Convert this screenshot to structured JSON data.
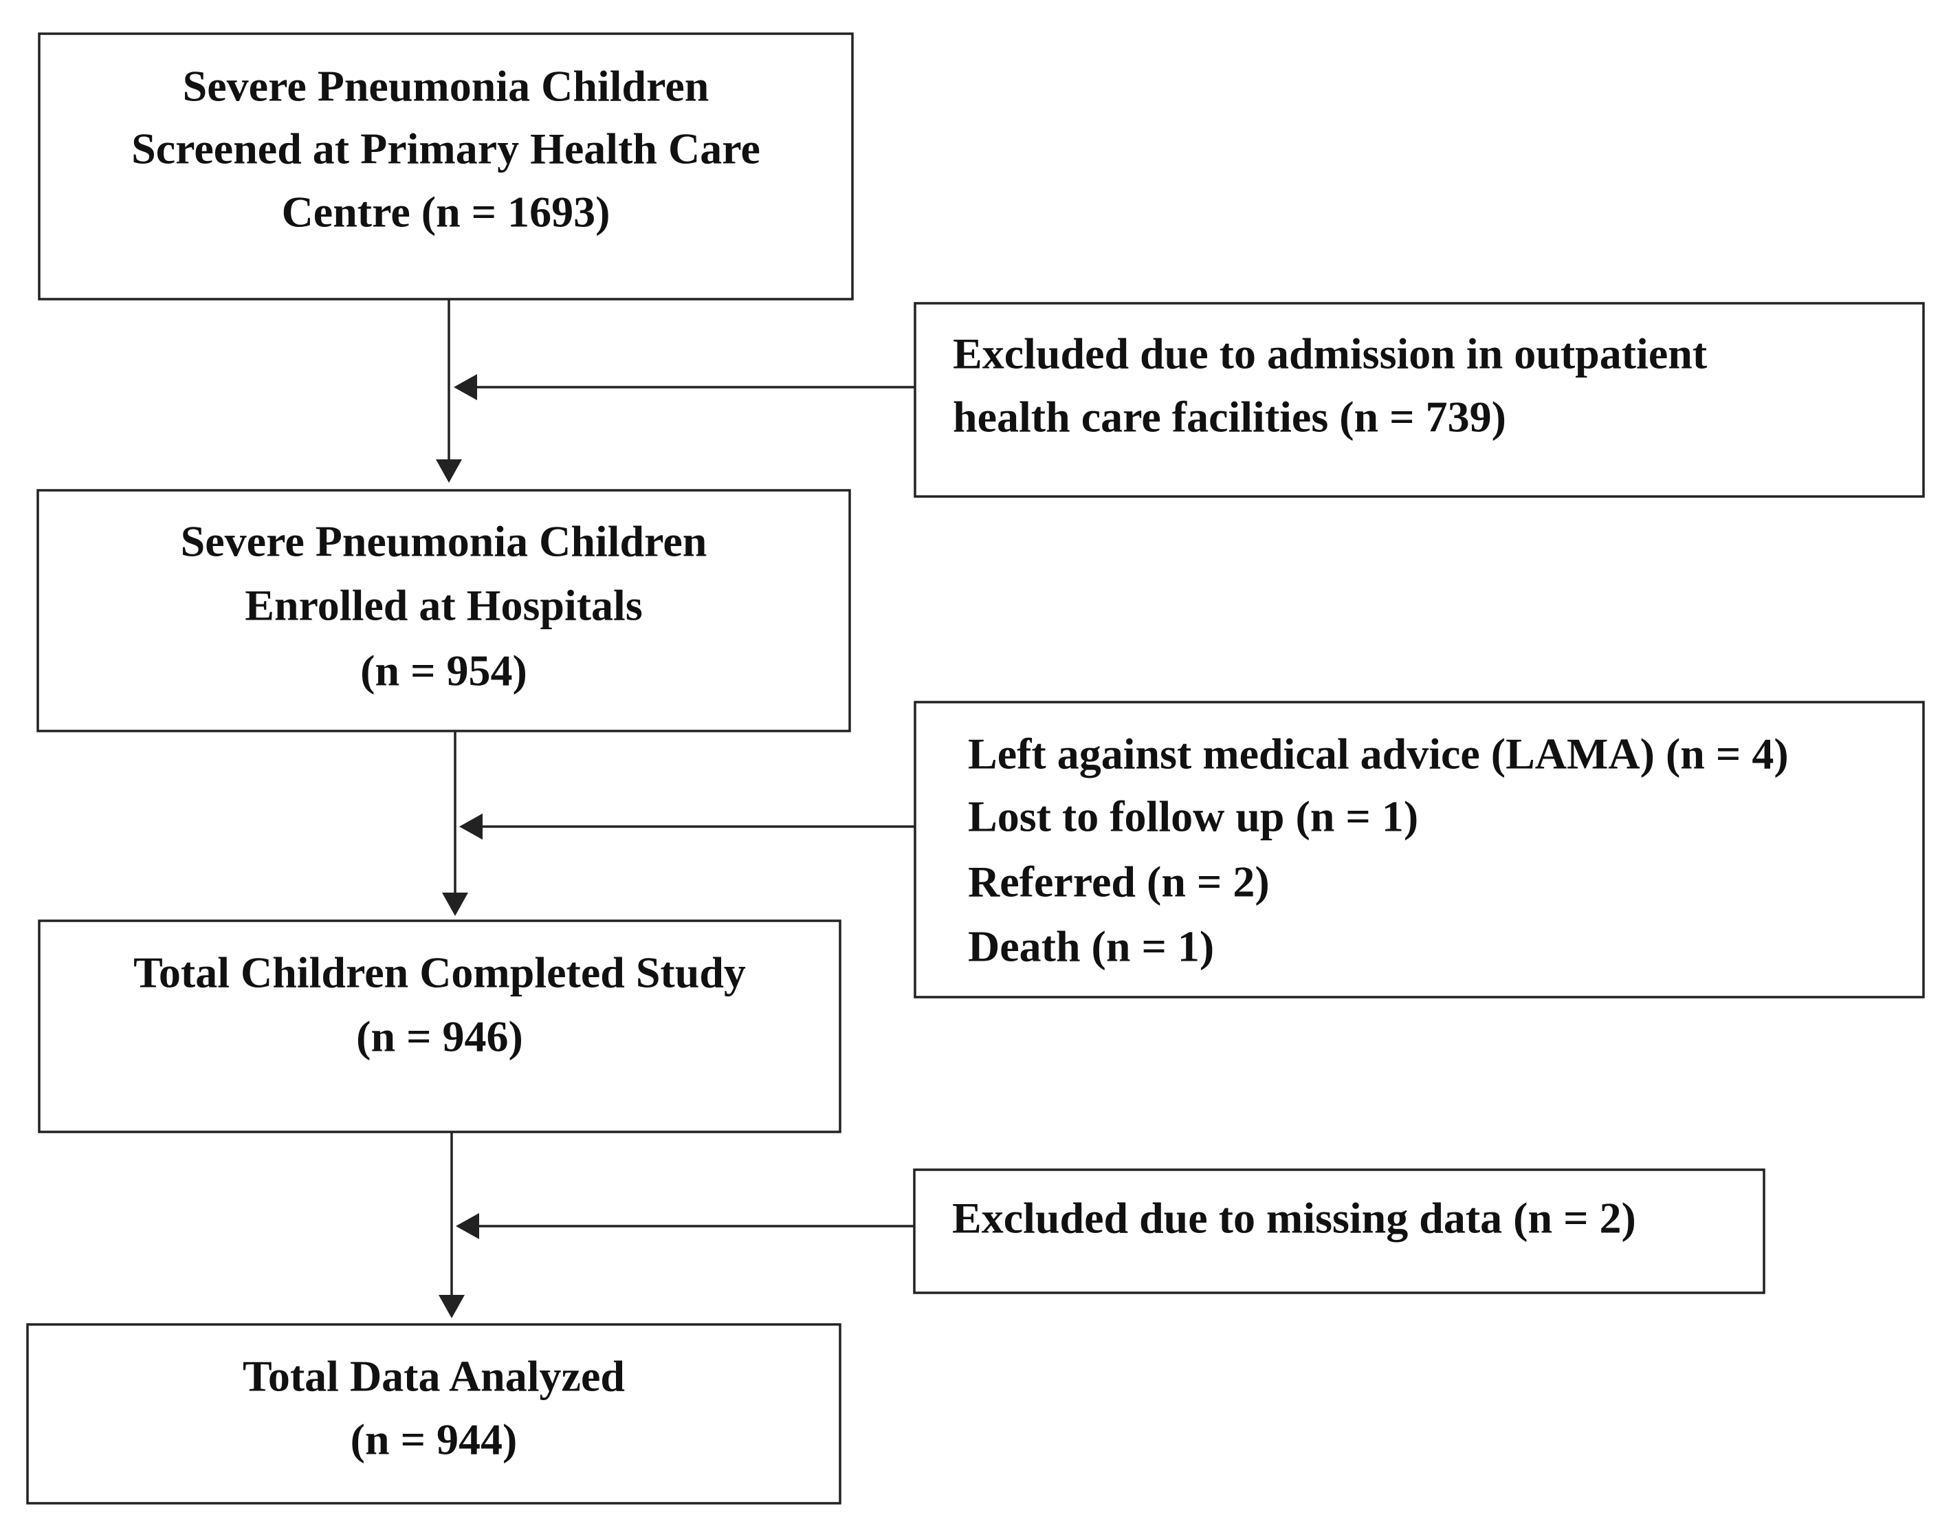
{
  "nodes": [
    {
      "lines": [
        "Severe Pneumonia Children",
        "Screened at Primary Health Care",
        "Centre (n = 1693)"
      ]
    },
    {
      "lines": [
        "Excluded due to admission in outpatient",
        "health care facilities (n = 739)"
      ]
    },
    {
      "lines": [
        "Severe Pneumonia Children",
        "Enrolled at Hospitals",
        "(n = 954)"
      ]
    },
    {
      "lines": [
        "Left against medical advice (LAMA) (n = 4)",
        "Lost to follow up (n = 1)",
        "Referred (n = 2)",
        "Death (n = 1)"
      ]
    },
    {
      "lines": [
        "Total Children Completed Study",
        "(n = 946)"
      ]
    },
    {
      "lines": [
        "Excluded due to missing data (n = 2)"
      ]
    },
    {
      "lines": [
        "Total Data Analyzed",
        "(n = 944)"
      ]
    }
  ]
}
